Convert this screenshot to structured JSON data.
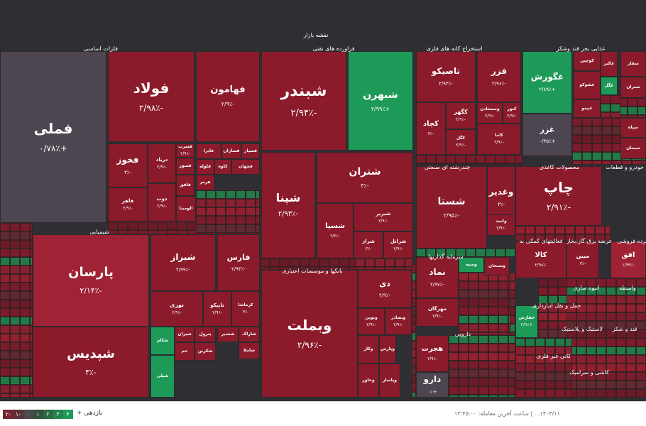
{
  "chart_data": {
    "type": "treemap",
    "title": "نقشه بازار",
    "colors": {
      "deep_red": "#8b1a2b",
      "red": "#a02235",
      "green": "#1e9a58",
      "dark_green": "#1a6a3e",
      "neutral": "#4d4550",
      "bg": "#2f2f33"
    },
    "sectors": [
      {
        "name": "فلزات اساسی"
      },
      {
        "name": "فراورده های نفتی"
      },
      {
        "name": "استخراج کانه های فلزی"
      },
      {
        "name": "غذایی بجز قند وشکر"
      },
      {
        "name": "شیمیایی"
      },
      {
        "name": "چندرشته ای صنعتی"
      },
      {
        "name": "محصولات کاغذی"
      },
      {
        "name": "بانکها و موسسات اعتباری"
      },
      {
        "name": "سرمایه گذاریها"
      },
      {
        "name": "دارویی"
      },
      {
        "name": "فعالیتهای کمکی به"
      },
      {
        "name": "عرضه برق،گاز،بخار"
      },
      {
        "name": "خودرو و قطعات"
      },
      {
        "name": "خرده فروشی"
      },
      {
        "name": "انبوه سازی"
      },
      {
        "name": "واسطه"
      },
      {
        "name": "حمل و نقل انبارداری"
      },
      {
        "name": "کانی غیر فلزی"
      },
      {
        "name": "کاشی و سرامیک"
      },
      {
        "name": "لاستیک و پلاستیک"
      },
      {
        "name": "قند و شکر"
      }
    ],
    "tiles": [
      {
        "name": "فملی",
        "change": "+۰/۷۸٪",
        "value": 0.78
      },
      {
        "name": "فولاد",
        "change": "-۲/۹۸٪",
        "value": -2.98
      },
      {
        "name": "فهامون",
        "change": "-۲/۹٪",
        "value": -2.9
      },
      {
        "name": "فخوز",
        "change": "-۳٪",
        "value": -3
      },
      {
        "name": "فسرب",
        "change": "-۲/۹٪",
        "value": -2.9
      },
      {
        "name": "فاهر",
        "change": "-۲/۹٪",
        "value": -2.9
      },
      {
        "name": "دریاد",
        "change": "-۲/۹٪",
        "value": -2.9
      },
      {
        "name": "ذوب",
        "change": "-۲/۹٪",
        "value": -2.9
      },
      {
        "name": "فسوز",
        "change": "",
        "value": -2.9
      },
      {
        "name": "فایرا",
        "change": "",
        "value": -2.9
      },
      {
        "name": "فسازان",
        "change": "",
        "value": -2.9
      },
      {
        "name": "فسپار",
        "change": "",
        "value": -2.9
      },
      {
        "name": "فاقق",
        "change": "",
        "value": -2.9
      },
      {
        "name": "فلوله",
        "change": "",
        "value": -2.9
      },
      {
        "name": "کاوه",
        "change": "",
        "value": -2.9
      },
      {
        "name": "هرمز",
        "change": "",
        "value": -2.9
      },
      {
        "name": "فجهان",
        "change": "",
        "value": -2.9
      },
      {
        "name": "الومینا",
        "change": "",
        "value": -2.9
      },
      {
        "name": "شبندر",
        "change": "-۲/۹۴٪",
        "value": -2.94
      },
      {
        "name": "شبهرن",
        "change": "+۲/۹۹٪",
        "value": 2.99
      },
      {
        "name": "شتران",
        "change": "-۳٪",
        "value": -3
      },
      {
        "name": "شپنا",
        "change": "-۲/۹۳٪",
        "value": -2.93
      },
      {
        "name": "شسپا",
        "change": "-۲/۶٪",
        "value": -2.6
      },
      {
        "name": "شبریز",
        "change": "-۲/۹٪",
        "value": -2.9
      },
      {
        "name": "شراز",
        "change": "-۳٪",
        "value": -3
      },
      {
        "name": "شرانل",
        "change": "-۲/۹٪",
        "value": -2.9
      },
      {
        "name": "تاصیکو",
        "change": "-۲/۹۳٪",
        "value": -2.93
      },
      {
        "name": "فزر",
        "change": "-۲/۹۶٪",
        "value": -2.96
      },
      {
        "name": "کچاد",
        "change": "-۳٪",
        "value": -3
      },
      {
        "name": "کگهر",
        "change": "-۲/۹٪",
        "value": -2.9
      },
      {
        "name": "وسمعادن",
        "change": "-۲/۹٪",
        "value": -2.9
      },
      {
        "name": "کنور",
        "change": "-۲/۹٪",
        "value": -2.9
      },
      {
        "name": "کگل",
        "change": "-۲/۹٪",
        "value": -2.9
      },
      {
        "name": "کاما",
        "change": "-۲/۹٪",
        "value": -2.9
      },
      {
        "name": "غگورش",
        "change": "+۲/۸۹٪",
        "value": 2.89
      },
      {
        "name": "غزر",
        "change": "+۰/۳۵٪",
        "value": 0.35
      },
      {
        "name": "کوچین",
        "change": "",
        "value": -2.9
      },
      {
        "name": "غالبر",
        "change": "",
        "value": -2.9
      },
      {
        "name": "غشوکو",
        "change": "",
        "value": -2.9
      },
      {
        "name": "غگل",
        "change": "",
        "value": 2.9
      },
      {
        "name": "غپینو",
        "change": "",
        "value": -2.9
      },
      {
        "name": "فارس",
        "change": "-۲/۹۳٪",
        "value": -2.93
      },
      {
        "name": "پارسان",
        "change": "-۲/۱۴٪",
        "value": -2.14
      },
      {
        "name": "شیراز",
        "change": "-۲/۹۹٪",
        "value": -2.99
      },
      {
        "name": "شپدیس",
        "change": "-۳٪",
        "value": -3
      },
      {
        "name": "نوری",
        "change": "-۲/۹٪",
        "value": -2.9
      },
      {
        "name": "تاپیکو",
        "change": "-۲/۹٪",
        "value": -2.9
      },
      {
        "name": "کرماشا",
        "change": "-۳٪",
        "value": -3
      },
      {
        "name": "شغدیر",
        "change": "",
        "value": -2.9
      },
      {
        "name": "شاراک",
        "change": "",
        "value": -2.9
      },
      {
        "name": "شاملا",
        "change": "",
        "value": -2.9
      },
      {
        "name": "شیران",
        "change": "",
        "value": -2.9
      },
      {
        "name": "پترول",
        "change": "",
        "value": -2.9
      },
      {
        "name": "شکام",
        "change": "",
        "value": 2.9
      },
      {
        "name": "جم",
        "change": "",
        "value": -2.9
      },
      {
        "name": "شکربن",
        "change": "",
        "value": -2.9
      },
      {
        "name": "شپلی",
        "change": "",
        "value": 2.9
      },
      {
        "name": "شستا",
        "change": "-۲/۹۵٪",
        "value": -2.95
      },
      {
        "name": "وغدیر",
        "change": "-۳٪",
        "value": -3
      },
      {
        "name": "وامید",
        "change": "-۲/۹٪",
        "value": -2.9
      },
      {
        "name": "چاپ",
        "change": "-۲/۹۱٪",
        "value": -2.91
      },
      {
        "name": "وبملت",
        "change": "-۲/۹۶٪",
        "value": -2.96
      },
      {
        "name": "دی",
        "change": "-۲/۹٪",
        "value": -2.9
      },
      {
        "name": "ونوین",
        "change": "-۲/۹٪",
        "value": -2.9
      },
      {
        "name": "وبصادر",
        "change": "-۲/۹٪",
        "value": -2.9
      },
      {
        "name": "وکار",
        "change": "",
        "value": -2.9
      },
      {
        "name": "وپارس",
        "change": "",
        "value": -2.9
      },
      {
        "name": "وخاور",
        "change": "",
        "value": -2.9
      },
      {
        "name": "وپاسار",
        "change": "",
        "value": -2.9
      },
      {
        "name": "نماد",
        "change": "-۲/۹۷٪",
        "value": -2.97
      },
      {
        "name": "مهرگان",
        "change": "-۲/۹٪",
        "value": -2.9
      },
      {
        "name": "وسپه",
        "change": "",
        "value": 2.9
      },
      {
        "name": "وسبحان",
        "change": "",
        "value": -2.9
      },
      {
        "name": "هجرت",
        "change": "-۲/۹٪",
        "value": -2.9
      },
      {
        "name": "دارو",
        "change": "+۰٪",
        "value": 0
      },
      {
        "name": "کالا",
        "change": "-۲/۹۸٪",
        "value": -2.98
      },
      {
        "name": "مبین",
        "change": "-۳٪",
        "value": -3
      },
      {
        "name": "افق",
        "change": "-۱/۹۳٪",
        "value": -1.93
      },
      {
        "name": "حفارس",
        "change": "+۲/۹٪",
        "value": 2.9
      },
      {
        "name": "سفار",
        "change": "",
        "value": -2.9
      },
      {
        "name": "ستران",
        "change": "",
        "value": -2.9
      },
      {
        "name": "سپاه",
        "change": "",
        "value": -2.9
      },
      {
        "name": "سیمان",
        "change": "",
        "value": -2.9
      }
    ]
  },
  "footer": {
    "legend_title": "بازدهی +",
    "legend": [
      {
        "label": "۴",
        "color": "#1e9a58"
      },
      {
        "label": "۳",
        "color": "#23844e"
      },
      {
        "label": "۲",
        "color": "#2a6a44"
      },
      {
        "label": "۱",
        "color": "#35503f"
      },
      {
        "label": "۰",
        "color": "#4a4a4d"
      },
      {
        "label": "۱-",
        "color": "#5a3236"
      },
      {
        "label": "۲-",
        "color": "#7a2430"
      }
    ],
    "info": "۱۴۰۴/۱۱... | ساعت آخرین معامله: ۱۳:۴۵:۰۰"
  }
}
